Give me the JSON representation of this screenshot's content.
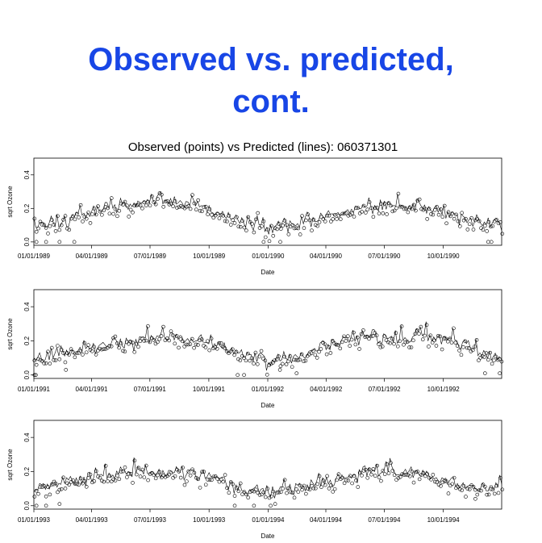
{
  "slide": {
    "title_line1": "Observed vs. predicted,",
    "title_line2": "cont."
  },
  "chart_data": {
    "type": "line",
    "title": "Observed (points) vs Predicted (lines): 060371301",
    "points_label": "observed",
    "lines_label": "predicted",
    "xlabel": "Date",
    "ylabel": "sqrt Ozone",
    "ylim": [
      -0.02,
      0.5
    ],
    "yticks": [
      0.0,
      0.2,
      0.4
    ],
    "ytick_labels": [
      "0.0",
      "0.2",
      "0.4"
    ],
    "grid": false,
    "colors": {
      "points": "#000000",
      "lines": "#000000",
      "title": "#1846e6"
    },
    "panels": [
      {
        "xlim": [
          "1989-01-01",
          "1990-12-31"
        ],
        "xticks": [
          "1989-01-01",
          "1989-04-01",
          "1989-07-01",
          "1989-10-01",
          "1990-01-01",
          "1990-04-01",
          "1990-07-01",
          "1990-10-01"
        ],
        "xtick_labels": [
          "01/01/1989",
          "04/01/1989",
          "07/01/1989",
          "10/01/1989",
          "01/01/1990",
          "04/01/1990",
          "07/01/1990",
          "10/01/1990"
        ],
        "trend": [
          [
            "1989-01-01",
            0.1
          ],
          [
            "1989-02-15",
            0.13
          ],
          [
            "1989-04-01",
            0.18
          ],
          [
            "1989-05-15",
            0.21
          ],
          [
            "1989-07-01",
            0.24
          ],
          [
            "1989-08-15",
            0.24
          ],
          [
            "1989-10-01",
            0.2
          ],
          [
            "1989-11-15",
            0.13
          ],
          [
            "1990-01-01",
            0.08
          ],
          [
            "1990-02-15",
            0.1
          ],
          [
            "1990-04-01",
            0.15
          ],
          [
            "1990-05-15",
            0.19
          ],
          [
            "1990-07-01",
            0.21
          ],
          [
            "1990-08-15",
            0.22
          ],
          [
            "1990-10-01",
            0.19
          ],
          [
            "1990-11-15",
            0.13
          ],
          [
            "1990-12-31",
            0.1
          ]
        ],
        "outliers": [
          [
            "1989-01-05",
            0.0
          ],
          [
            "1989-01-20",
            0.0
          ],
          [
            "1989-02-10",
            0.0
          ],
          [
            "1989-03-05",
            0.0
          ],
          [
            "1989-12-25",
            0.0
          ],
          [
            "1990-01-20",
            0.0
          ],
          [
            "1990-12-10",
            0.0
          ],
          [
            "1990-12-15",
            0.0
          ]
        ]
      },
      {
        "xlim": [
          "1991-01-01",
          "1992-12-31"
        ],
        "xticks": [
          "1991-01-01",
          "1991-04-01",
          "1991-07-01",
          "1991-10-01",
          "1992-01-01",
          "1992-04-01",
          "1992-07-01",
          "1992-10-01"
        ],
        "xtick_labels": [
          "01/01/1991",
          "04/01/1991",
          "07/01/1991",
          "10/01/1991",
          "01/01/1992",
          "04/01/1992",
          "07/01/1992",
          "10/01/1992"
        ],
        "trend": [
          [
            "1991-01-01",
            0.09
          ],
          [
            "1991-02-15",
            0.13
          ],
          [
            "1991-04-01",
            0.17
          ],
          [
            "1991-05-15",
            0.19
          ],
          [
            "1991-07-01",
            0.21
          ],
          [
            "1991-08-15",
            0.22
          ],
          [
            "1991-10-01",
            0.19
          ],
          [
            "1991-11-15",
            0.13
          ],
          [
            "1992-01-01",
            0.08
          ],
          [
            "1992-02-15",
            0.1
          ],
          [
            "1992-04-01",
            0.16
          ],
          [
            "1992-05-15",
            0.22
          ],
          [
            "1992-07-01",
            0.22
          ],
          [
            "1992-08-15",
            0.22
          ],
          [
            "1992-10-01",
            0.22
          ],
          [
            "1992-11-15",
            0.15
          ],
          [
            "1992-12-31",
            0.09
          ]
        ],
        "outliers": [
          [
            "1991-01-02",
            0.0
          ],
          [
            "1991-01-04",
            0.0
          ],
          [
            "1991-02-20",
            0.03
          ],
          [
            "1991-11-15",
            0.0
          ],
          [
            "1991-11-25",
            0.0
          ],
          [
            "1992-01-20",
            0.03
          ],
          [
            "1992-02-15",
            0.01
          ],
          [
            "1992-12-05",
            0.01
          ],
          [
            "1992-12-28",
            0.01
          ]
        ]
      },
      {
        "xlim": [
          "1993-01-01",
          "1994-12-31"
        ],
        "xticks": [
          "1993-01-01",
          "1993-04-01",
          "1993-07-01",
          "1993-10-01",
          "1994-01-01",
          "1994-04-01",
          "1994-07-01",
          "1994-10-01"
        ],
        "xtick_labels": [
          "01/01/1993",
          "04/01/1993",
          "07/01/1993",
          "10/01/1993",
          "01/01/1994",
          "04/01/1994",
          "07/01/1994",
          "10/01/1994"
        ],
        "trend": [
          [
            "1993-01-01",
            0.1
          ],
          [
            "1993-02-15",
            0.13
          ],
          [
            "1993-04-01",
            0.17
          ],
          [
            "1993-05-15",
            0.19
          ],
          [
            "1993-07-01",
            0.2
          ],
          [
            "1993-08-15",
            0.2
          ],
          [
            "1993-10-01",
            0.17
          ],
          [
            "1993-11-15",
            0.11
          ],
          [
            "1994-01-01",
            0.08
          ],
          [
            "1994-02-15",
            0.1
          ],
          [
            "1994-04-01",
            0.15
          ],
          [
            "1994-05-15",
            0.18
          ],
          [
            "1994-07-01",
            0.2
          ],
          [
            "1994-08-15",
            0.19
          ],
          [
            "1994-10-01",
            0.15
          ],
          [
            "1994-11-15",
            0.11
          ],
          [
            "1994-12-31",
            0.09
          ]
        ],
        "outliers": [
          [
            "1993-01-05",
            0.0
          ],
          [
            "1993-01-20",
            0.0
          ],
          [
            "1993-02-10",
            0.01
          ],
          [
            "1993-11-10",
            0.0
          ],
          [
            "1993-12-10",
            0.0
          ],
          [
            "1994-01-05",
            0.0
          ],
          [
            "1994-11-20",
            0.04
          ]
        ]
      }
    ]
  }
}
